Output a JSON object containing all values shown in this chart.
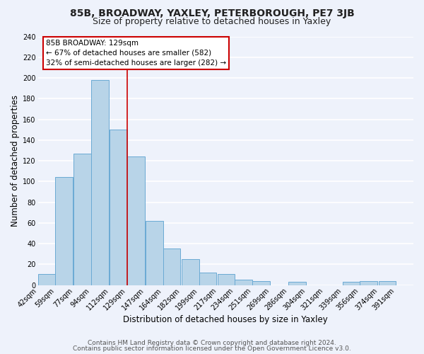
{
  "title": "85B, BROADWAY, YAXLEY, PETERBOROUGH, PE7 3JB",
  "subtitle": "Size of property relative to detached houses in Yaxley",
  "xlabel": "Distribution of detached houses by size in Yaxley",
  "ylabel": "Number of detached properties",
  "footer1": "Contains HM Land Registry data © Crown copyright and database right 2024.",
  "footer2": "Contains public sector information licensed under the Open Government Licence v3.0.",
  "bar_left_edges": [
    42,
    59,
    77,
    94,
    112,
    129,
    147,
    164,
    182,
    199,
    217,
    234,
    251,
    269,
    286,
    304,
    321,
    339,
    356,
    374
  ],
  "bar_heights": [
    11,
    104,
    127,
    198,
    150,
    124,
    62,
    35,
    25,
    12,
    11,
    5,
    4,
    0,
    3,
    0,
    0,
    3,
    4,
    4
  ],
  "bin_width": 17,
  "bar_color": "#b8d4e8",
  "bar_edge_color": "#6aaad4",
  "property_line_x": 129,
  "annotation_text": "85B BROADWAY: 129sqm\n← 67% of detached houses are smaller (582)\n32% of semi-detached houses are larger (282) →",
  "annotation_box_color": "white",
  "annotation_box_edge_color": "#cc0000",
  "ylim": [
    0,
    240
  ],
  "yticks": [
    0,
    20,
    40,
    60,
    80,
    100,
    120,
    140,
    160,
    180,
    200,
    220,
    240
  ],
  "tick_labels": [
    "42sqm",
    "59sqm",
    "77sqm",
    "94sqm",
    "112sqm",
    "129sqm",
    "147sqm",
    "164sqm",
    "182sqm",
    "199sqm",
    "217sqm",
    "234sqm",
    "251sqm",
    "269sqm",
    "286sqm",
    "304sqm",
    "321sqm",
    "339sqm",
    "356sqm",
    "374sqm",
    "391sqm"
  ],
  "background_color": "#eef2fb",
  "grid_color": "white",
  "title_fontsize": 10,
  "subtitle_fontsize": 9,
  "axis_label_fontsize": 8.5,
  "tick_fontsize": 7,
  "annot_fontsize": 7.5,
  "footer_fontsize": 6.5
}
